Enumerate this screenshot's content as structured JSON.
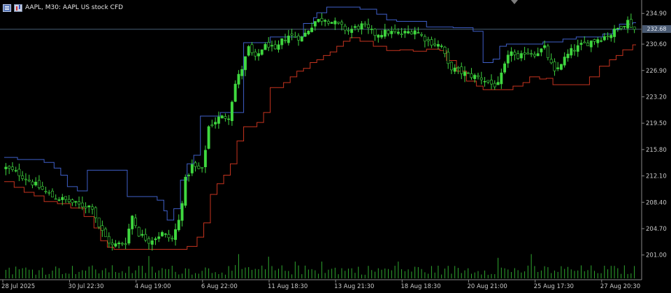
{
  "header": {
    "symbol": "AAPL",
    "timeframe": "M30",
    "description": "AAPL US stock CFD",
    "separator_1": ",",
    "separator_2": ":"
  },
  "current_price_label": "232.68",
  "colors": {
    "background": "#000000",
    "candle_up": "#3fd83f",
    "upper_channel": "#3f5fc8",
    "lower_channel": "#c8341f",
    "volume": "#2fa82f",
    "price_line": "#5f7f9f",
    "axis_text": "#c8c8c8"
  },
  "chart_data": {
    "type": "line",
    "title": "AAPL, M30: AAPL US stock CFD",
    "ylim": [
      199.2,
      236.2
    ],
    "price_ticks": [
      "234.90",
      "230.60",
      "226.90",
      "223.20",
      "219.50",
      "215.80",
      "212.10",
      "208.40",
      "204.70",
      "201.00"
    ],
    "price_tick_values": [
      234.9,
      230.6,
      226.9,
      223.2,
      219.5,
      215.8,
      212.1,
      208.4,
      204.7,
      201.0
    ],
    "time_labels": [
      "28 Jul 2025",
      "30 Jul 22:30",
      "4 Aug 19:00",
      "6 Aug 22:00",
      "11 Aug 18:30",
      "13 Aug 21:30",
      "18 Aug 18:30",
      "20 Aug 21:00",
      "25 Aug 17:30",
      "27 Aug 20:30"
    ],
    "time_label_index": [
      0,
      20,
      40,
      60,
      80,
      100,
      120,
      140,
      160,
      180
    ],
    "current_price": 232.68,
    "n_bars": 190,
    "close_key": [
      [
        0,
        213.2
      ],
      [
        4,
        212.4
      ],
      [
        10,
        210.5
      ],
      [
        14,
        209.2
      ],
      [
        18,
        208.7
      ],
      [
        22,
        208.0
      ],
      [
        26,
        207.8
      ],
      [
        28,
        205.0
      ],
      [
        30,
        203.5
      ],
      [
        32,
        202.3
      ],
      [
        36,
        202.8
      ],
      [
        38,
        206.5
      ],
      [
        40,
        204.0
      ],
      [
        43,
        203.0
      ],
      [
        47,
        204.0
      ],
      [
        50,
        203.2
      ],
      [
        52,
        205.8
      ],
      [
        54,
        211.5
      ],
      [
        56,
        213.5
      ],
      [
        59,
        212.8
      ],
      [
        61,
        219.0
      ],
      [
        64,
        220.2
      ],
      [
        67,
        220.5
      ],
      [
        69,
        225.0
      ],
      [
        71,
        227.2
      ],
      [
        73,
        230.0
      ],
      [
        75,
        228.5
      ],
      [
        77,
        230.0
      ],
      [
        79,
        230.5
      ],
      [
        81,
        229.5
      ],
      [
        83,
        231.0
      ],
      [
        85,
        231.8
      ],
      [
        89,
        231.5
      ],
      [
        93,
        233.8
      ],
      [
        96,
        234.2
      ],
      [
        99,
        233.5
      ],
      [
        103,
        232.5
      ],
      [
        107,
        233.2
      ],
      [
        111,
        232.0
      ],
      [
        115,
        232.3
      ],
      [
        119,
        232.0
      ],
      [
        123,
        232.6
      ],
      [
        127,
        231.0
      ],
      [
        131,
        230.3
      ],
      [
        133,
        227.6
      ],
      [
        135,
        227.0
      ],
      [
        139,
        226.3
      ],
      [
        143,
        225.8
      ],
      [
        146,
        225.0
      ],
      [
        148,
        224.8
      ],
      [
        150,
        227.5
      ],
      [
        152,
        229.8
      ],
      [
        154,
        228.2
      ],
      [
        156,
        229.5
      ],
      [
        159,
        229.3
      ],
      [
        162,
        230.0
      ],
      [
        165,
        226.5
      ],
      [
        167,
        228.0
      ],
      [
        170,
        229.6
      ],
      [
        173,
        230.4
      ],
      [
        176,
        231.0
      ],
      [
        179,
        231.5
      ],
      [
        182,
        232.0
      ],
      [
        185,
        233.2
      ],
      [
        187,
        233.8
      ],
      [
        189,
        232.7
      ]
    ],
    "series": [
      {
        "kind": "upper_channel",
        "steps": [
          [
            0,
            214.7
          ],
          [
            4,
            214.4
          ],
          [
            12,
            214.0
          ],
          [
            15,
            213.2
          ],
          [
            17,
            212.2
          ],
          [
            19,
            210.6
          ],
          [
            22,
            210.0
          ],
          [
            25,
            212.9
          ],
          [
            37,
            209.2
          ],
          [
            46,
            208.7
          ],
          [
            48,
            207.2
          ],
          [
            49,
            205.9
          ],
          [
            51,
            207.5
          ],
          [
            53,
            211.5
          ],
          [
            55,
            213.8
          ],
          [
            57,
            215.0
          ],
          [
            59,
            220.5
          ],
          [
            65,
            221.0
          ],
          [
            72,
            230.8
          ],
          [
            80,
            231.6
          ],
          [
            90,
            233.5
          ],
          [
            93,
            234.3
          ],
          [
            94,
            235.0
          ],
          [
            97,
            235.8
          ],
          [
            107,
            235.5
          ],
          [
            112,
            234.8
          ],
          [
            115,
            234.0
          ],
          [
            118,
            233.8
          ],
          [
            127,
            233.0
          ],
          [
            135,
            232.9
          ],
          [
            141,
            232.4
          ],
          [
            144,
            228.0
          ],
          [
            147,
            228.5
          ],
          [
            149,
            230.3
          ],
          [
            151,
            230.6
          ],
          [
            162,
            230.9
          ],
          [
            168,
            231.3
          ],
          [
            172,
            231.6
          ],
          [
            180,
            232.0
          ],
          [
            183,
            232.6
          ],
          [
            185,
            233.4
          ],
          [
            189,
            233.6
          ]
        ]
      },
      {
        "kind": "lower_channel",
        "steps": [
          [
            0,
            211.3
          ],
          [
            3,
            210.5
          ],
          [
            6,
            209.8
          ],
          [
            9,
            209.3
          ],
          [
            12,
            208.5
          ],
          [
            16,
            208.2
          ],
          [
            20,
            207.6
          ],
          [
            24,
            206.4
          ],
          [
            27,
            204.8
          ],
          [
            29,
            203.0
          ],
          [
            31,
            202.1
          ],
          [
            33,
            201.8
          ],
          [
            55,
            202.2
          ],
          [
            58,
            203.5
          ],
          [
            60,
            205.5
          ],
          [
            62,
            209.5
          ],
          [
            64,
            211.0
          ],
          [
            66,
            212.2
          ],
          [
            68,
            213.8
          ],
          [
            70,
            217.0
          ],
          [
            72,
            219.0
          ],
          [
            76,
            219.6
          ],
          [
            78,
            221.0
          ],
          [
            80,
            224.5
          ],
          [
            84,
            225.2
          ],
          [
            86,
            226.0
          ],
          [
            88,
            226.8
          ],
          [
            90,
            227.2
          ],
          [
            92,
            228.0
          ],
          [
            94,
            228.4
          ],
          [
            96,
            229.0
          ],
          [
            98,
            229.5
          ],
          [
            100,
            230.3
          ],
          [
            102,
            231.0
          ],
          [
            104,
            231.5
          ],
          [
            107,
            231.0
          ],
          [
            111,
            230.3
          ],
          [
            115,
            229.7
          ],
          [
            119,
            229.8
          ],
          [
            123,
            229.6
          ],
          [
            127,
            229.9
          ],
          [
            131,
            229.7
          ],
          [
            133,
            228.3
          ],
          [
            136,
            226.8
          ],
          [
            139,
            225.4
          ],
          [
            142,
            224.7
          ],
          [
            144,
            224.2
          ],
          [
            153,
            224.7
          ],
          [
            156,
            225.2
          ],
          [
            158,
            226.0
          ],
          [
            161,
            225.7
          ],
          [
            163,
            225.8
          ],
          [
            165,
            224.9
          ],
          [
            174,
            224.9
          ],
          [
            176,
            226.0
          ],
          [
            179,
            227.5
          ],
          [
            182,
            228.4
          ],
          [
            184,
            229.0
          ],
          [
            186,
            229.8
          ],
          [
            189,
            230.5
          ]
        ]
      }
    ]
  }
}
